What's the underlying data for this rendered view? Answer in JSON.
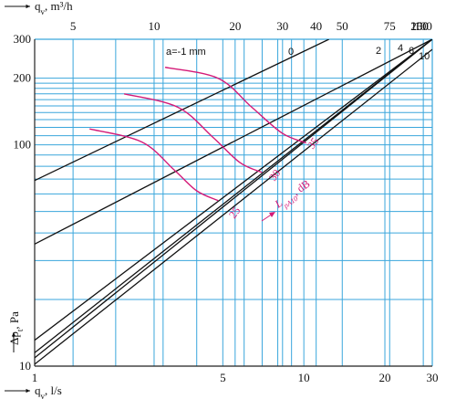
{
  "chart_data": {
    "type": "line",
    "colors": {
      "grid": "#3aa6dc",
      "lines": "#111111",
      "noise": "#d41a78"
    },
    "x_axis": {
      "label": "q",
      "label_sub": "v",
      "unit": ", l/s",
      "scale": "log",
      "range": [
        1,
        30
      ],
      "ticks": [
        {
          "v": 1,
          "t": "1"
        },
        {
          "v": 5,
          "t": "5"
        },
        {
          "v": 10,
          "t": "10"
        },
        {
          "v": 20,
          "t": "20"
        },
        {
          "v": 30,
          "t": "30"
        }
      ]
    },
    "x2_axis": {
      "label": "q",
      "label_sub": "v",
      "unit": ", m³/h",
      "scale": "log",
      "ticks": [
        {
          "v": 5,
          "t": "5"
        },
        {
          "v": 10,
          "t": "10"
        },
        {
          "v": 20,
          "t": "20"
        },
        {
          "v": 30,
          "t": "30"
        },
        {
          "v": 40,
          "t": "40"
        },
        {
          "v": 50,
          "t": "50"
        },
        {
          "v": 75,
          "t": "75"
        },
        {
          "v": 100,
          "t": "100"
        },
        {
          "v": 150,
          "t": "150"
        },
        {
          "v": 200,
          "t": "200"
        }
      ]
    },
    "y_axis": {
      "label": "Δp",
      "label_sub": "t",
      "unit": ", Pa",
      "scale": "log",
      "range": [
        10,
        300
      ],
      "ticks": [
        {
          "v": 10,
          "t": "10"
        },
        {
          "v": 100,
          "t": "100"
        },
        {
          "v": 200,
          "t": "200"
        },
        {
          "v": 300,
          "t": "300"
        }
      ]
    },
    "series": [
      {
        "name": "a=-1 mm",
        "x": [
          1,
          12.4
        ],
        "y": [
          69,
          300
        ]
      },
      {
        "name": "0",
        "x": [
          1,
          30
        ],
        "y": [
          35.6,
          300
        ]
      },
      {
        "name": "2",
        "x": [
          1,
          30
        ],
        "y": [
          13.1,
          300
        ]
      },
      {
        "name": "4",
        "x": [
          1,
          30
        ],
        "y": [
          11.5,
          300
        ]
      },
      {
        "name": "6",
        "x": [
          1,
          30
        ],
        "y": [
          10.9,
          300
        ]
      },
      {
        "name": "10",
        "x": [
          1,
          30
        ],
        "y": [
          10.2,
          270
        ]
      }
    ],
    "noise_curves": [
      {
        "name": "25",
        "x": [
          1.6,
          2.5,
          3.3,
          4.0,
          4.8
        ],
        "y": [
          118,
          103,
          77,
          62,
          56
        ]
      },
      {
        "name": "30",
        "x": [
          2.15,
          3.4,
          4.6,
          5.8,
          7.0
        ],
        "y": [
          170,
          148,
          108,
          83,
          75
        ]
      },
      {
        "name": "35",
        "x": [
          3.05,
          4.8,
          6.4,
          8.3,
          10.2
        ],
        "y": [
          224,
          200,
          148,
          113,
          102
        ]
      }
    ],
    "noise_label": {
      "text": "L",
      "sub": "pA10",
      "unit": ", dB"
    }
  }
}
